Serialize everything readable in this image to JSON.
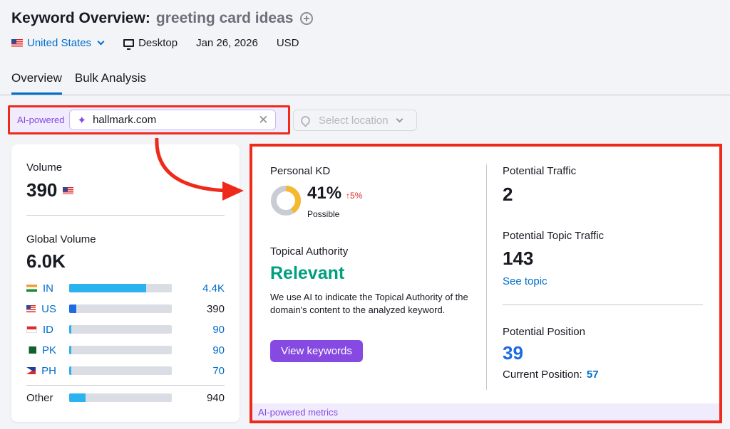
{
  "header": {
    "title": "Keyword Overview:",
    "keyword": "greeting card ideas",
    "country": "United States",
    "device": "Desktop",
    "date": "Jan 26, 2026",
    "currency": "USD"
  },
  "tabs": [
    {
      "label": "Overview",
      "active": true
    },
    {
      "label": "Bulk Analysis",
      "active": false
    }
  ],
  "ai_search": {
    "label": "AI-powered",
    "domain": "hallmark.com",
    "location_placeholder": "Select location"
  },
  "volume": {
    "label": "Volume",
    "value": "390",
    "global_label": "Global Volume",
    "global_value": "6.0K",
    "countries": [
      {
        "code": "IN",
        "value": "4.4K",
        "fill_pct": 75,
        "link": true
      },
      {
        "code": "US",
        "value": "390",
        "fill_pct": 7,
        "link": false
      },
      {
        "code": "ID",
        "value": "90",
        "fill_pct": 2,
        "link": true
      },
      {
        "code": "PK",
        "value": "90",
        "fill_pct": 2,
        "link": true
      },
      {
        "code": "PH",
        "value": "70",
        "fill_pct": 2,
        "link": true
      }
    ],
    "other_label": "Other",
    "other_value": "940",
    "other_fill_pct": 16
  },
  "metrics": {
    "kd_label": "Personal KD",
    "kd_value": "41%",
    "kd_delta": "↑5%",
    "kd_rating": "Possible",
    "kd_fraction": 0.41,
    "topical_label": "Topical Authority",
    "topical_value": "Relevant",
    "topical_desc": "We use AI to indicate the Topical Authority of the domain's content to the analyzed keyword.",
    "view_keywords": "View keywords",
    "traffic_label": "Potential Traffic",
    "traffic_value": "2",
    "topic_traffic_label": "Potential Topic Traffic",
    "topic_traffic_value": "143",
    "see_topic": "See topic",
    "position_label": "Potential Position",
    "position_value": "39",
    "current_position_label": "Current Position:",
    "current_position_value": "57",
    "footer": "AI-powered metrics"
  },
  "colors": {
    "accent": "#006dca",
    "ai_purple": "#8649e1",
    "highlight_red": "#ee2b1b",
    "relevant_green": "#009f81",
    "kd_yellow": "#f5b82e"
  }
}
